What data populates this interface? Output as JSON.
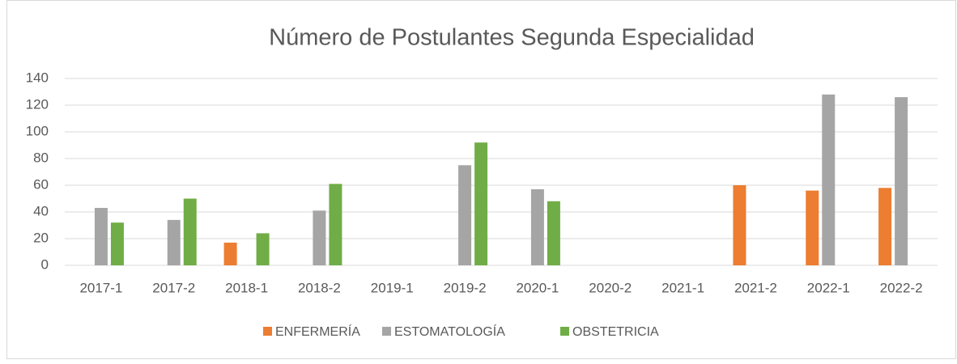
{
  "chart_data": {
    "type": "bar",
    "title": "Número de Postulantes Segunda Especialidad",
    "categories": [
      "2017-1",
      "2017-2",
      "2018-1",
      "2018-2",
      "2019-1",
      "2019-2",
      "2020-1",
      "2020-2",
      "2021-1",
      "2021-2",
      "2022-1",
      "2022-2"
    ],
    "series": [
      {
        "name": "ENFERMERÍA",
        "color": "#ed7d31",
        "values": [
          null,
          null,
          17,
          null,
          null,
          null,
          null,
          null,
          null,
          60,
          56,
          58
        ]
      },
      {
        "name": "ESTOMATOLOGÍA",
        "color": "#a5a5a5",
        "values": [
          43,
          34,
          null,
          41,
          null,
          75,
          57,
          null,
          null,
          null,
          128,
          126
        ]
      },
      {
        "name": "OBSTETRICIA",
        "color": "#70ad47",
        "values": [
          32,
          50,
          24,
          61,
          null,
          92,
          48,
          null,
          null,
          null,
          null,
          null
        ]
      }
    ],
    "ylim": [
      0,
      140
    ],
    "yticks": [
      0,
      20,
      40,
      60,
      80,
      100,
      120,
      140
    ],
    "grid": true,
    "legend": "bottom"
  }
}
